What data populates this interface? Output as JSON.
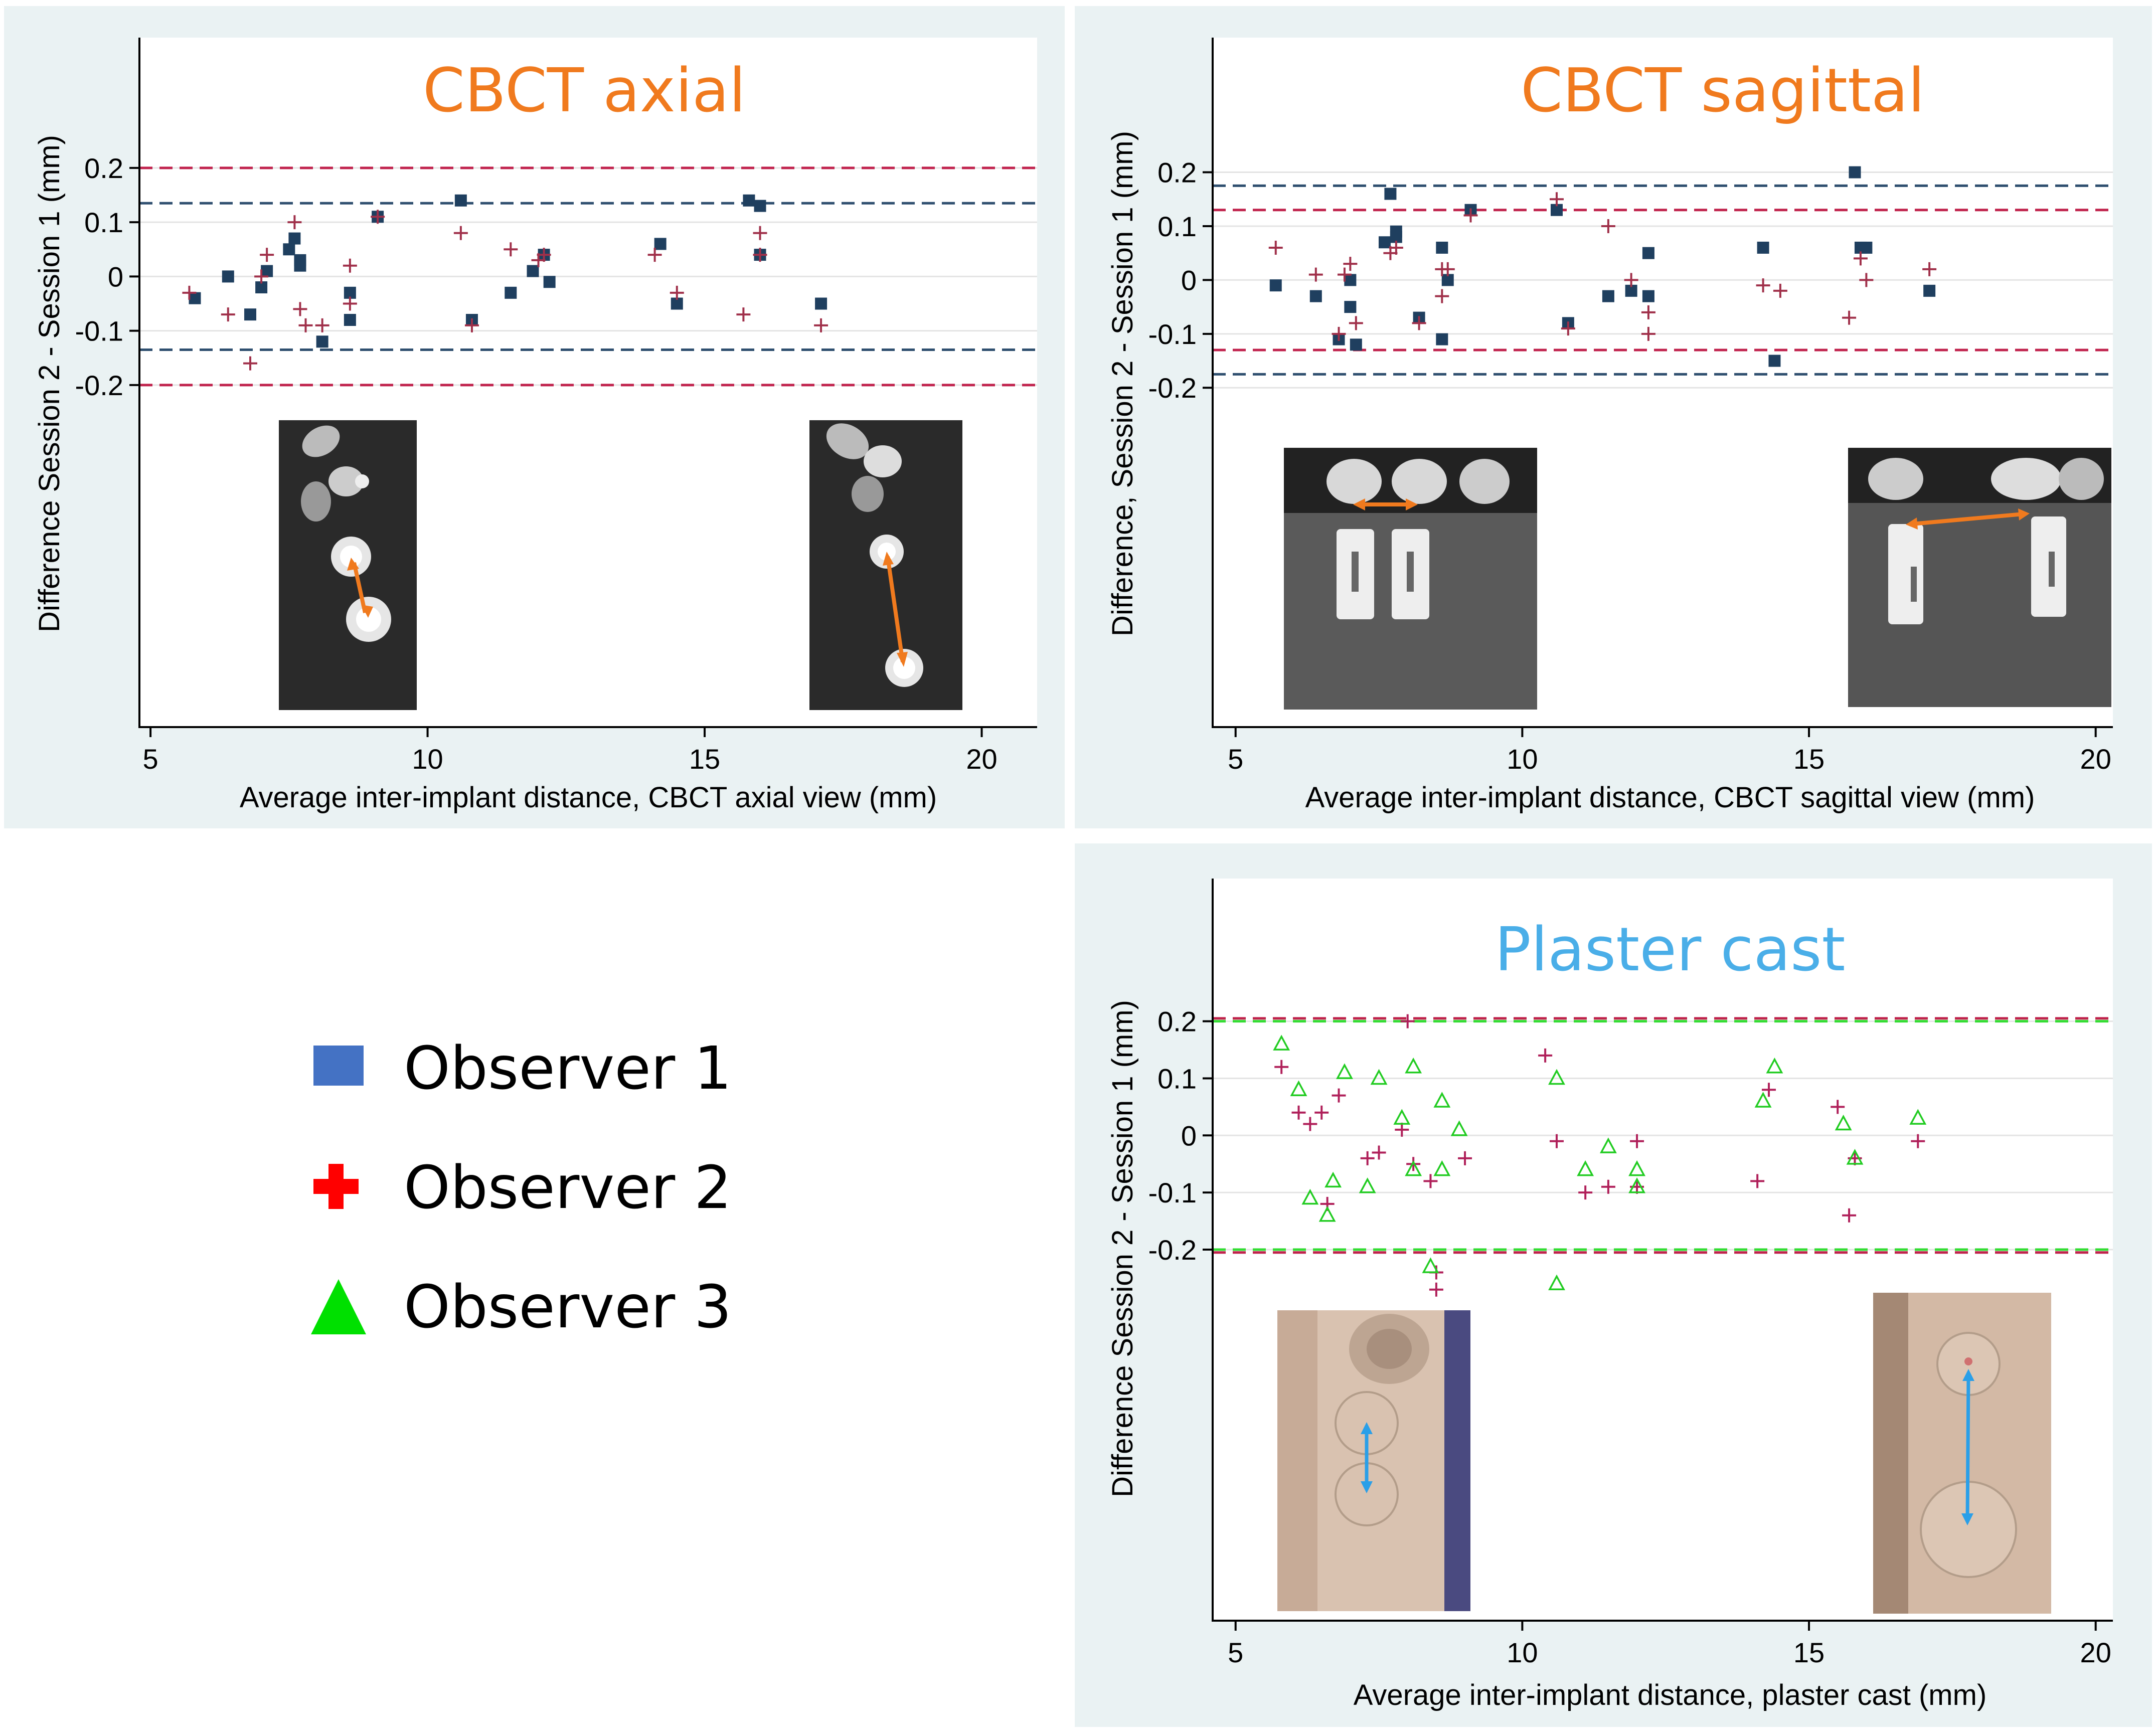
{
  "legend": {
    "items": [
      {
        "label": "Observer 1",
        "color": "#4472c4",
        "shape": "square"
      },
      {
        "label": "Observer 2",
        "color": "#ff0000",
        "shape": "plus"
      },
      {
        "label": "Observer 3",
        "color": "#00e000",
        "shape": "triangle"
      }
    ]
  },
  "chart_data": [
    {
      "id": "axial",
      "type": "scatter",
      "title": "CBCT axial",
      "title_color": "#f07a1e",
      "xlabel": "Average inter-implant distance, CBCT axial view (mm)",
      "ylabel": "Difference Session 2 - Session 1 (mm)",
      "xlim": [
        4.8,
        21.0
      ],
      "ylim": [
        -0.83,
        0.44
      ],
      "xticks": [
        5,
        10,
        15,
        20
      ],
      "yticks": [
        0.2,
        0.1,
        0,
        -0.1,
        -0.2
      ],
      "ytick_labels": [
        "0.2",
        "0.1",
        "0",
        "-0.1",
        "-0.2"
      ],
      "limit_lines": [
        {
          "y": 0.2,
          "color": "#c0224c"
        },
        {
          "y": -0.2,
          "color": "#c0224c"
        },
        {
          "y": 0.135,
          "color": "#2f4f6f"
        },
        {
          "y": -0.135,
          "color": "#2f4f6f"
        }
      ],
      "series": [
        {
          "name": "Observer 1",
          "marker": "square",
          "color": "#1f3f5f",
          "x": [
            5.8,
            6.4,
            6.8,
            7.0,
            7.1,
            7.5,
            7.6,
            7.7,
            7.7,
            8.1,
            8.6,
            8.6,
            9.1,
            10.6,
            10.8,
            11.5,
            11.9,
            12.1,
            12.2,
            14.2,
            14.5,
            15.8,
            16.0,
            16.0,
            17.1
          ],
          "y": [
            -0.04,
            0.0,
            -0.07,
            -0.02,
            0.01,
            0.05,
            0.07,
            0.02,
            0.03,
            -0.12,
            -0.03,
            -0.08,
            0.11,
            0.14,
            -0.08,
            -0.03,
            0.01,
            0.04,
            -0.01,
            0.06,
            -0.05,
            0.14,
            0.04,
            0.13,
            -0.05
          ]
        },
        {
          "name": "Observer 2",
          "marker": "plus",
          "color": "#a0304a",
          "x": [
            5.7,
            6.4,
            6.8,
            7.0,
            7.1,
            7.6,
            7.7,
            7.8,
            8.1,
            8.6,
            8.6,
            9.1,
            10.6,
            10.8,
            11.5,
            12.0,
            12.1,
            14.1,
            14.5,
            15.7,
            16.0,
            16.0,
            17.1
          ],
          "y": [
            -0.03,
            -0.07,
            -0.16,
            0.0,
            0.04,
            0.1,
            -0.06,
            -0.09,
            -0.09,
            0.02,
            -0.05,
            0.11,
            0.08,
            -0.09,
            0.05,
            0.03,
            0.04,
            0.04,
            -0.03,
            -0.07,
            0.04,
            0.08,
            -0.09
          ]
        }
      ]
    },
    {
      "id": "sagittal",
      "type": "scatter",
      "title": "CBCT sagittal",
      "title_color": "#f07a1e",
      "xlabel": "Average inter-implant distance, CBCT sagittal view (mm)",
      "ylabel": "Difference, Session 2 - Session 1 (mm)",
      "xlim": [
        4.6,
        20.3
      ],
      "ylim": [
        -0.83,
        0.45
      ],
      "xticks": [
        5,
        10,
        15,
        20
      ],
      "yticks": [
        0.2,
        0.1,
        0,
        -0.1,
        -0.2
      ],
      "ytick_labels": [
        "0.2",
        "0.1",
        "0",
        "-0.1",
        "-0.2"
      ],
      "limit_lines": [
        {
          "y": 0.175,
          "color": "#2f4f6f"
        },
        {
          "y": -0.175,
          "color": "#2f4f6f"
        },
        {
          "y": 0.13,
          "color": "#c0224c"
        },
        {
          "y": -0.13,
          "color": "#c0224c"
        }
      ],
      "series": [
        {
          "name": "Observer 1",
          "marker": "square",
          "color": "#1f3f5f",
          "x": [
            5.7,
            6.4,
            6.8,
            7.0,
            7.0,
            7.1,
            7.6,
            7.7,
            7.8,
            7.8,
            8.2,
            8.6,
            8.6,
            8.7,
            9.1,
            10.6,
            10.8,
            11.5,
            11.9,
            12.2,
            12.2,
            14.2,
            14.4,
            15.8,
            15.9,
            16.0,
            17.1
          ],
          "y": [
            -0.01,
            -0.03,
            -0.11,
            0.0,
            -0.05,
            -0.12,
            0.07,
            0.16,
            0.09,
            0.08,
            -0.07,
            0.06,
            -0.11,
            0.0,
            0.13,
            0.13,
            -0.08,
            -0.03,
            -0.02,
            0.05,
            -0.03,
            0.06,
            -0.15,
            0.2,
            0.06,
            0.06,
            -0.02
          ]
        },
        {
          "name": "Observer 2",
          "marker": "plus",
          "color": "#a0304a",
          "x": [
            5.7,
            6.4,
            6.8,
            6.9,
            7.0,
            7.1,
            7.7,
            7.8,
            8.2,
            8.6,
            8.6,
            8.7,
            9.1,
            10.6,
            10.8,
            11.5,
            11.9,
            12.2,
            12.2,
            14.2,
            14.5,
            15.7,
            15.9,
            16.0,
            17.1
          ],
          "y": [
            0.06,
            0.01,
            -0.1,
            0.01,
            0.03,
            -0.08,
            0.05,
            0.06,
            -0.08,
            0.02,
            -0.03,
            0.02,
            0.12,
            0.15,
            -0.09,
            0.1,
            0.0,
            -0.06,
            -0.1,
            -0.01,
            -0.02,
            -0.07,
            0.04,
            0.0,
            0.02
          ]
        }
      ]
    },
    {
      "id": "plaster",
      "type": "scatter",
      "title": "Plaster cast",
      "title_color": "#4aaee8",
      "xlabel": "Average inter-implant distance, plaster cast (mm)",
      "ylabel": "Difference Session 2 - Session 1 (mm)",
      "xlim": [
        4.6,
        20.3
      ],
      "ylim": [
        -0.85,
        0.45
      ],
      "xticks": [
        5,
        10,
        15,
        20
      ],
      "yticks": [
        0.2,
        0.1,
        0,
        -0.1,
        -0.2
      ],
      "ytick_labels": [
        "0.2",
        "0.1",
        "0",
        "-0.1",
        "-0.2"
      ],
      "limit_lines": [
        {
          "y": 0.205,
          "color": "#c0224c"
        },
        {
          "y": -0.205,
          "color": "#c0224c"
        },
        {
          "y": 0.2,
          "color": "#33dd33"
        },
        {
          "y": -0.2,
          "color": "#33dd33"
        }
      ],
      "series": [
        {
          "name": "Observer 2",
          "marker": "plus",
          "color": "#b0205a",
          "x": [
            5.8,
            6.1,
            6.3,
            6.5,
            6.6,
            6.8,
            7.3,
            7.5,
            7.9,
            8.0,
            8.1,
            8.4,
            8.5,
            8.5,
            9.0,
            10.4,
            10.6,
            11.1,
            11.5,
            12.0,
            12.0,
            14.1,
            14.3,
            15.5,
            15.7,
            15.8,
            16.9
          ],
          "y": [
            0.12,
            0.04,
            0.02,
            0.04,
            -0.12,
            0.07,
            -0.04,
            -0.03,
            0.01,
            0.2,
            -0.05,
            -0.08,
            -0.27,
            -0.24,
            -0.04,
            0.14,
            -0.01,
            -0.1,
            -0.09,
            -0.09,
            -0.01,
            -0.08,
            0.08,
            0.05,
            -0.14,
            -0.04,
            -0.01
          ]
        },
        {
          "name": "Observer 3",
          "marker": "triangle",
          "color": "#22cc22",
          "x": [
            5.8,
            6.1,
            6.3,
            6.6,
            6.7,
            6.9,
            7.3,
            7.5,
            7.9,
            8.1,
            8.1,
            8.4,
            8.6,
            8.6,
            8.9,
            10.6,
            10.6,
            11.1,
            11.5,
            12.0,
            12.0,
            14.2,
            14.4,
            15.6,
            15.8,
            16.9
          ],
          "y": [
            0.16,
            0.08,
            -0.11,
            -0.14,
            -0.08,
            0.11,
            -0.09,
            0.1,
            0.03,
            0.12,
            -0.06,
            -0.23,
            0.06,
            -0.06,
            0.01,
            0.1,
            -0.26,
            -0.06,
            -0.02,
            -0.09,
            -0.06,
            0.06,
            0.12,
            0.02,
            -0.04,
            0.03
          ]
        }
      ]
    }
  ]
}
